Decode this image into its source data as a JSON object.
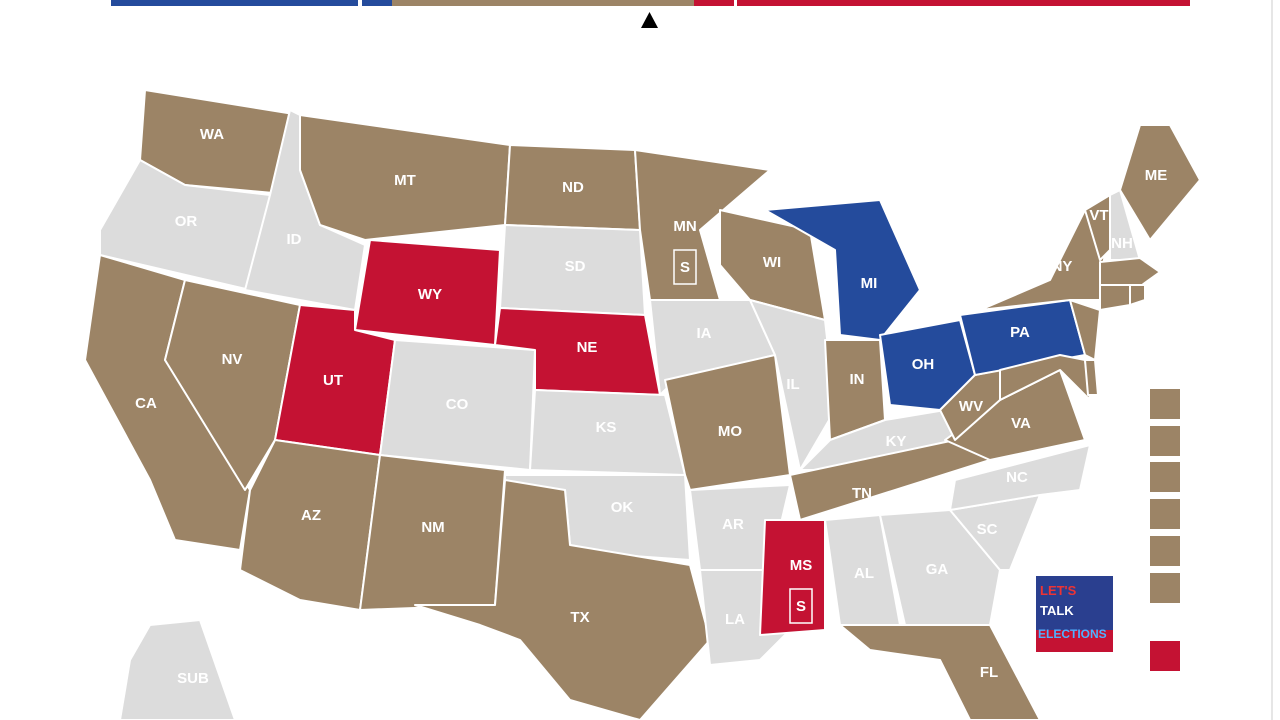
{
  "states": [
    {
      "label": "WA",
      "color": "#9c8466"
    },
    {
      "label": "OR",
      "color": "#dcdcdc"
    },
    {
      "label": "CA",
      "color": "#9c8466"
    },
    {
      "label": "NV",
      "color": "#9c8466"
    },
    {
      "label": "ID",
      "color": "#dcdcdc"
    },
    {
      "label": "MT",
      "color": "#9c8466"
    },
    {
      "label": "WY",
      "color": "#c41233"
    },
    {
      "label": "UT",
      "color": "#c41233"
    },
    {
      "label": "AZ",
      "color": "#9c8466"
    },
    {
      "label": "CO",
      "color": "#dcdcdc"
    },
    {
      "label": "NM",
      "color": "#9c8466"
    },
    {
      "label": "ND",
      "color": "#9c8466"
    },
    {
      "label": "SD",
      "color": "#dcdcdc"
    },
    {
      "label": "NE",
      "color": "#c41233"
    },
    {
      "label": "KS",
      "color": "#dcdcdc"
    },
    {
      "label": "OK",
      "color": "#dcdcdc"
    },
    {
      "label": "TX",
      "color": "#9c8466"
    },
    {
      "label": "MN",
      "color": "#9c8466",
      "badge": "S"
    },
    {
      "label": "IA",
      "color": "#dcdcdc"
    },
    {
      "label": "MO",
      "color": "#9c8466"
    },
    {
      "label": "AR",
      "color": "#dcdcdc"
    },
    {
      "label": "LA",
      "color": "#dcdcdc"
    },
    {
      "label": "WI",
      "color": "#9c8466"
    },
    {
      "label": "IL",
      "color": "#dcdcdc"
    },
    {
      "label": "MI",
      "color": "#244b9c"
    },
    {
      "label": "IN",
      "color": "#9c8466"
    },
    {
      "label": "OH",
      "color": "#244b9c"
    },
    {
      "label": "KY",
      "color": "#dcdcdc"
    },
    {
      "label": "TN",
      "color": "#9c8466"
    },
    {
      "label": "MS",
      "color": "#c41233",
      "badge": "S"
    },
    {
      "label": "AL",
      "color": "#dcdcdc"
    },
    {
      "label": "GA",
      "color": "#dcdcdc"
    },
    {
      "label": "FL",
      "color": "#9c8466"
    },
    {
      "label": "SC",
      "color": "#dcdcdc"
    },
    {
      "label": "NC",
      "color": "#dcdcdc"
    },
    {
      "label": "VA",
      "color": "#9c8466"
    },
    {
      "label": "WV",
      "color": "#9c8466"
    },
    {
      "label": "PA",
      "color": "#244b9c"
    },
    {
      "label": "NY",
      "color": "#9c8466"
    },
    {
      "label": "VT",
      "color": "#9c8466"
    },
    {
      "label": "NH",
      "color": "#dcdcdc"
    },
    {
      "label": "ME",
      "color": "#9c8466"
    },
    {
      "label": "SUB",
      "color": "#dcdcdc"
    }
  ],
  "logo": {
    "lines": [
      "LET'S",
      "TALK",
      "ELECTIONS"
    ]
  }
}
